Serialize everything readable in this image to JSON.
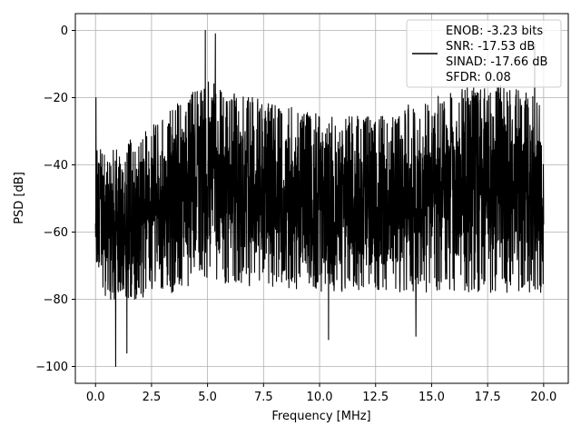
{
  "chart_data": {
    "type": "line",
    "title": "",
    "xlabel": "Frequency [MHz]",
    "ylabel": "PSD [dB]",
    "xlim": [
      -0.9,
      21.1
    ],
    "ylim": [
      -105,
      5
    ],
    "grid": true,
    "legend_position": "top-right",
    "x_ticks": [
      0.0,
      2.5,
      5.0,
      7.5,
      10.0,
      12.5,
      15.0,
      17.5,
      20.0
    ],
    "x_tick_labels": [
      "0.0",
      "2.5",
      "5.0",
      "7.5",
      "10.0",
      "12.5",
      "15.0",
      "17.5",
      "20.0"
    ],
    "y_ticks": [
      0,
      -20,
      -40,
      -60,
      -80,
      -100
    ],
    "y_tick_labels": [
      "0",
      "−20",
      "−40",
      "−60",
      "−80",
      "−100"
    ],
    "series": [
      {
        "color": "#000000",
        "noise_floor_db": -55,
        "x_range": [
          0.0,
          20.0
        ],
        "upper_envelope": {
          "x": [
            0,
            1,
            3,
            5,
            7,
            10,
            12.5,
            15,
            17.5,
            20
          ],
          "y": [
            -35,
            -35,
            -25,
            -15,
            -20,
            -25,
            -25,
            -20,
            -15,
            -20
          ]
        },
        "lower_envelope": {
          "x": [
            0,
            2.5,
            5,
            10,
            15,
            20
          ],
          "y": [
            -80,
            -80,
            -75,
            -78,
            -78,
            -78
          ]
        },
        "peaks": [
          {
            "x": 0.02,
            "y": -20
          },
          {
            "x": 4.9,
            "y": 0
          },
          {
            "x": 5.35,
            "y": -1
          },
          {
            "x": 19.6,
            "y": -4
          }
        ],
        "troughs": [
          {
            "x": 0.9,
            "y": -100
          },
          {
            "x": 1.4,
            "y": -96
          },
          {
            "x": 10.4,
            "y": -92
          },
          {
            "x": 14.3,
            "y": -91
          }
        ]
      }
    ],
    "legend_lines": [
      "ENOB: -3.23 bits",
      "SNR: -17.53 dB",
      "SINAD: -17.66 dB",
      "SFDR: 0.08"
    ]
  }
}
